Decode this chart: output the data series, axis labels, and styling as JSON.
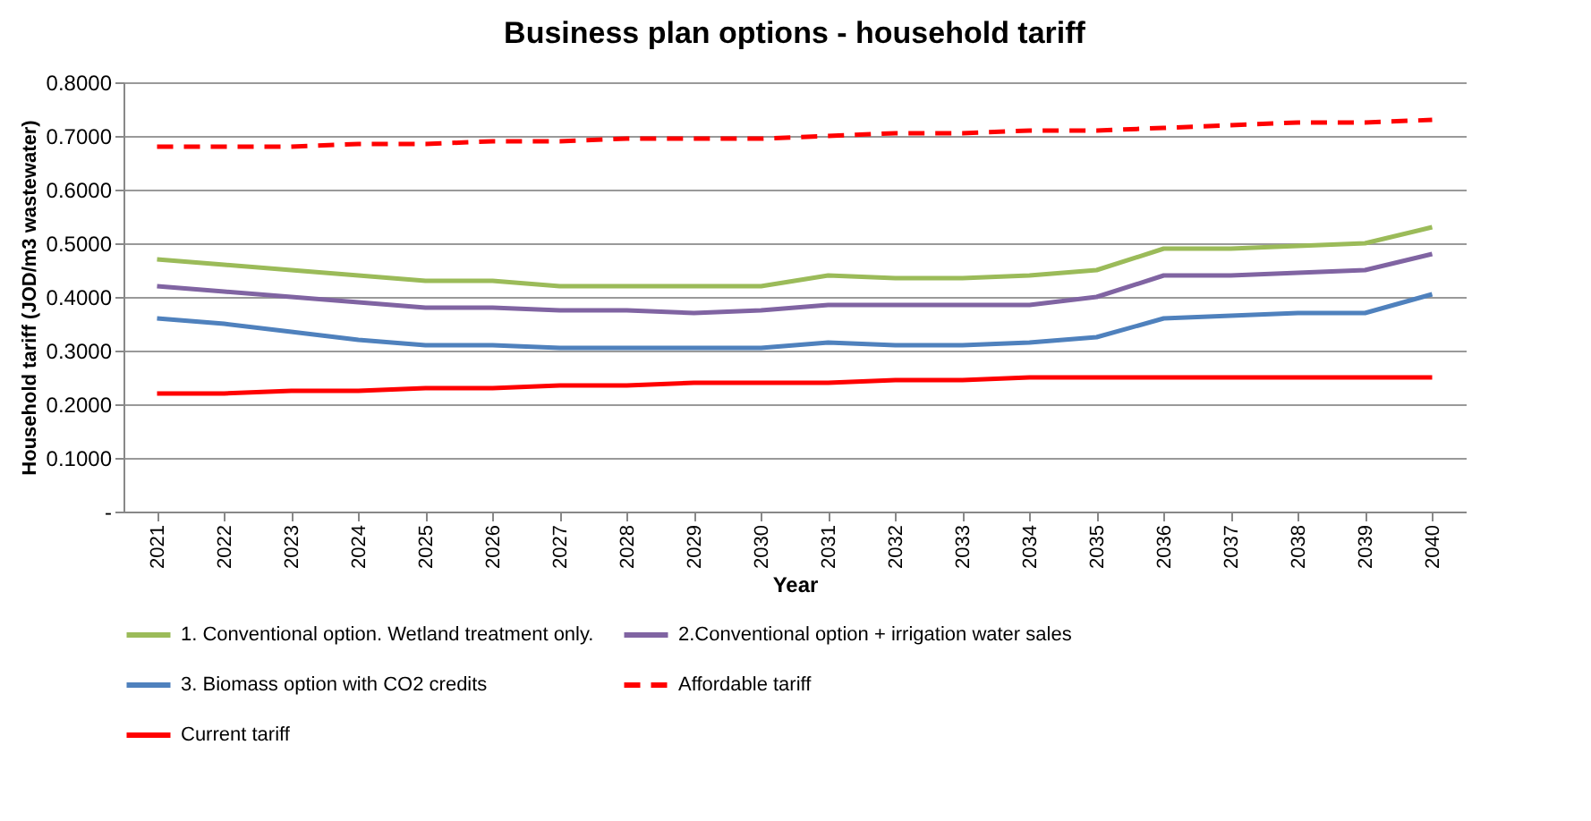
{
  "chart_data": {
    "type": "line",
    "title": "Business plan options - household tariff",
    "xlabel": "Year",
    "ylabel": "Household tariff (JOD/m3 wastewater)",
    "categories": [
      "2021",
      "2022",
      "2023",
      "2024",
      "2025",
      "2026",
      "2027",
      "2028",
      "2029",
      "2030",
      "2031",
      "2032",
      "2033",
      "2034",
      "2035",
      "2036",
      "2037",
      "2038",
      "2039",
      "2040"
    ],
    "series": [
      {
        "name": "1. Conventional option. Wetland treatment only.",
        "color": "#9bbb59",
        "values": [
          0.47,
          0.46,
          0.45,
          0.44,
          0.43,
          0.43,
          0.42,
          0.42,
          0.42,
          0.42,
          0.44,
          0.435,
          0.435,
          0.44,
          0.45,
          0.49,
          0.49,
          0.495,
          0.5,
          0.53
        ]
      },
      {
        "name": "2.Conventional option + irrigation water sales",
        "color": "#8064a2",
        "values": [
          0.42,
          0.41,
          0.4,
          0.39,
          0.38,
          0.38,
          0.375,
          0.375,
          0.37,
          0.375,
          0.385,
          0.385,
          0.385,
          0.385,
          0.4,
          0.44,
          0.44,
          0.445,
          0.45,
          0.48
        ]
      },
      {
        "name": "3. Biomass option with CO2 credits",
        "color": "#4f81bd",
        "values": [
          0.36,
          0.35,
          0.335,
          0.32,
          0.31,
          0.31,
          0.305,
          0.305,
          0.305,
          0.305,
          0.315,
          0.31,
          0.31,
          0.315,
          0.325,
          0.36,
          0.365,
          0.37,
          0.37,
          0.405
        ]
      },
      {
        "name": "Affordable tariff",
        "color": "#ff0000",
        "line_style": "dashed",
        "values": [
          0.68,
          0.68,
          0.68,
          0.685,
          0.685,
          0.69,
          0.69,
          0.695,
          0.695,
          0.695,
          0.7,
          0.705,
          0.705,
          0.71,
          0.71,
          0.715,
          0.72,
          0.725,
          0.725,
          0.73
        ]
      },
      {
        "name": "Current tariff",
        "color": "#ff0000",
        "line_style": "solid",
        "values": [
          0.22,
          0.22,
          0.225,
          0.225,
          0.23,
          0.23,
          0.235,
          0.235,
          0.24,
          0.24,
          0.24,
          0.245,
          0.245,
          0.25,
          0.25,
          0.25,
          0.25,
          0.25,
          0.25,
          0.25
        ]
      }
    ],
    "ylim": [
      0,
      0.8
    ],
    "yticks": [
      {
        "value": 0,
        "label": "-"
      },
      {
        "value": 0.1,
        "label": "0.1000"
      },
      {
        "value": 0.2,
        "label": "0.2000"
      },
      {
        "value": 0.3,
        "label": "0.3000"
      },
      {
        "value": 0.4,
        "label": "0.4000"
      },
      {
        "value": 0.5,
        "label": "0.5000"
      },
      {
        "value": 0.6,
        "label": "0.6000"
      },
      {
        "value": 0.7,
        "label": "0.7000"
      },
      {
        "value": 0.8,
        "label": "0.8000"
      }
    ],
    "grid": "y",
    "legend": "bottom",
    "line_style": "solid"
  }
}
